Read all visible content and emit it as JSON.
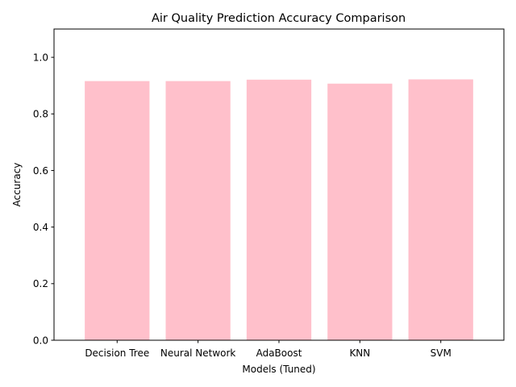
{
  "chart_data": {
    "type": "bar",
    "title": "Air Quality Prediction Accuracy Comparison",
    "xlabel": "Models (Tuned)",
    "ylabel": "Accuracy",
    "categories": [
      "Decision Tree",
      "Neural Network",
      "AdaBoost",
      "KNN",
      "SVM"
    ],
    "values": [
      0.916,
      0.916,
      0.921,
      0.907,
      0.922
    ],
    "ylim": [
      0,
      1.1
    ],
    "yticks": [
      "0.0",
      "0.2",
      "0.4",
      "0.6",
      "0.8",
      "1.0"
    ],
    "bar_color": "#ffc0cb",
    "grid": false,
    "legend": "none"
  }
}
